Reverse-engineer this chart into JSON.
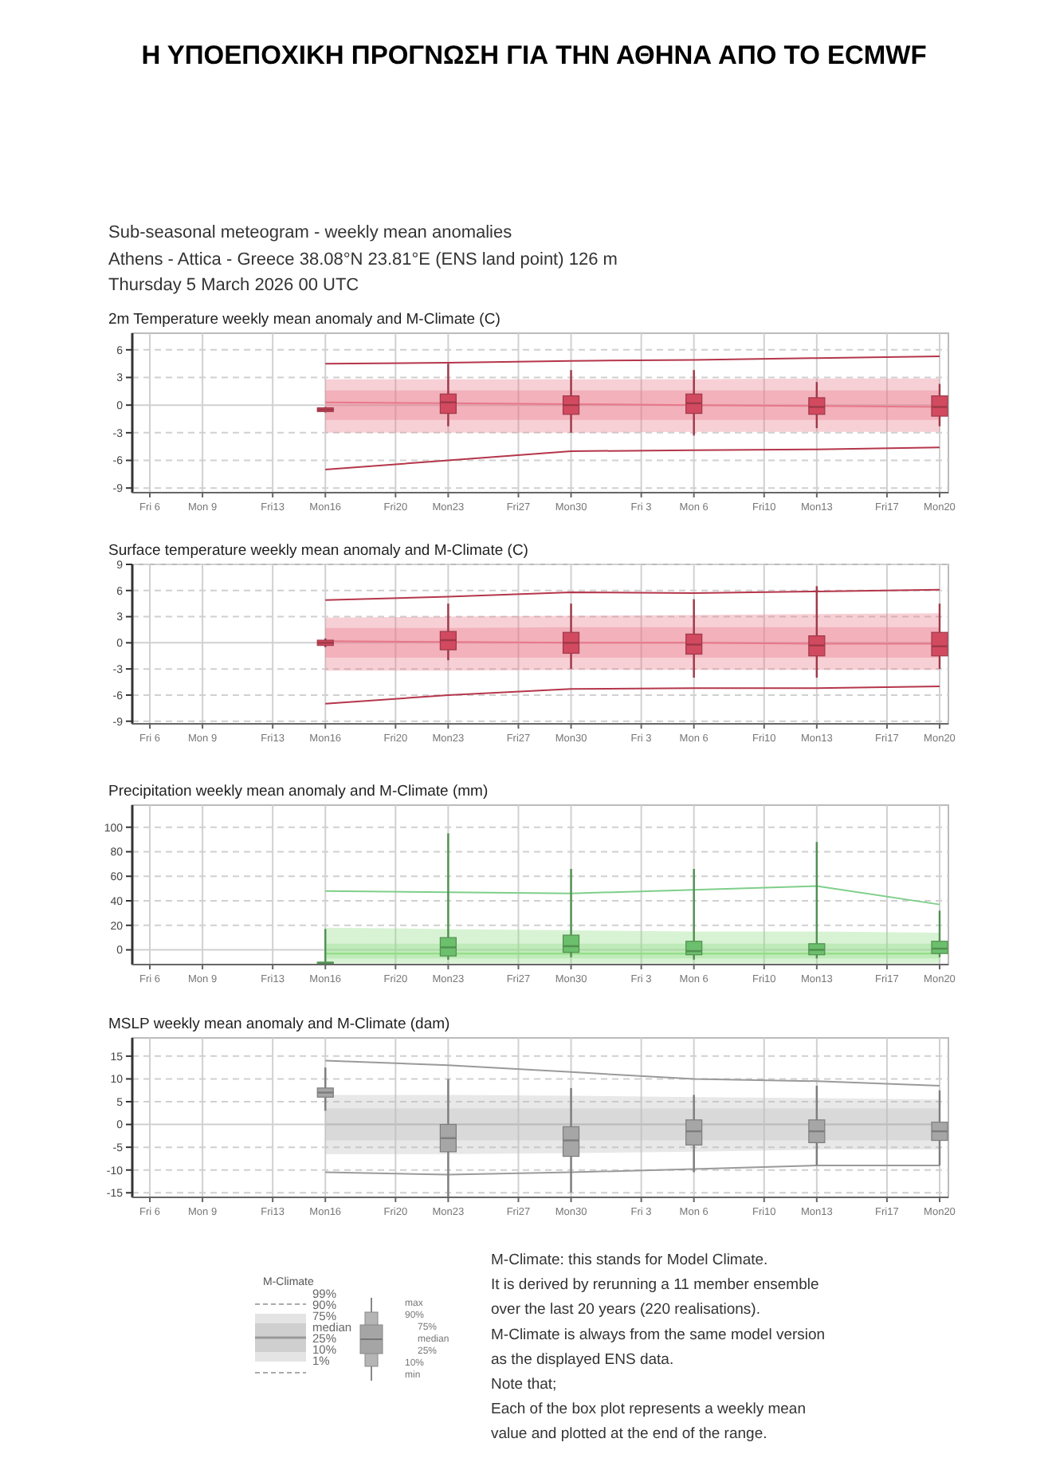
{
  "chart_data": [
    {
      "type": "other",
      "title": "Η ΥΠΟΕΠΟΧΙΚΗ ΠΡΟΓΝΩΣΗ ΓΙΑ ΤΗΝ ΑΘΗΝΑ ΑΠΟ  ΤΟ ECMWF",
      "subtitle": "Sub-seasonal meteogram - weekly mean anomalies",
      "annotations": [
        "Athens - Attica - Greece 38.08°N 23.81°E (ENS land point) 126 m",
        "Thursday  5 March 2026 00 UTC"
      ]
    },
    {
      "type": "box",
      "title": "2m Temperature weekly mean anomaly and M-Climate (C)",
      "xlim": [
        "2026-03-05T00:00",
        "2026-04-20T12:00"
      ],
      "xticks": [
        {
          "value": "2026-03-06",
          "label": "Fri 6"
        },
        {
          "value": "2026-03-09",
          "label": "Mon 9"
        },
        {
          "value": "2026-03-13",
          "label": "Fri13"
        },
        {
          "value": "2026-03-16",
          "label": "Mon16"
        },
        {
          "value": "2026-03-20",
          "label": "Fri20"
        },
        {
          "value": "2026-03-23",
          "label": "Mon23"
        },
        {
          "value": "2026-03-27",
          "label": "Fri27"
        },
        {
          "value": "2026-03-30",
          "label": "Mon30"
        },
        {
          "value": "2026-04-03",
          "label": "Fri 3"
        },
        {
          "value": "2026-04-06",
          "label": "Mon 6"
        },
        {
          "value": "2026-04-10",
          "label": "Fri10"
        },
        {
          "value": "2026-04-13",
          "label": "Mon13"
        },
        {
          "value": "2026-04-17",
          "label": "Fri17"
        },
        {
          "value": "2026-04-20",
          "label": "Mon20"
        }
      ],
      "ylim": [
        -9.5,
        7.8
      ],
      "yticks": [
        -9,
        -6,
        -3,
        0,
        3,
        6
      ],
      "grid": true,
      "series": [
        {
          "type": "line",
          "x": [
            "2026-03-16",
            "2026-03-23",
            "2026-03-30",
            "2026-04-06",
            "2026-04-13",
            "2026-04-20"
          ],
          "values": [
            4.5,
            4.6,
            4.8,
            4.9,
            5.1,
            5.3
          ],
          "color": "#b5364b"
        },
        {
          "type": "line",
          "x": [
            "2026-03-16",
            "2026-03-23",
            "2026-03-30",
            "2026-04-06",
            "2026-04-13",
            "2026-04-20"
          ],
          "values": [
            -7,
            -6,
            -5,
            -4.9,
            -4.8,
            -4.6
          ],
          "color": "#b5364b"
        },
        {
          "type": "line",
          "x": [
            "2026-03-16",
            "2026-03-23",
            "2026-03-30",
            "2026-04-06",
            "2026-04-13",
            "2026-04-20"
          ],
          "values": [
            0.3,
            0.2,
            0.1,
            0,
            -0.1,
            -0.2
          ],
          "lower": [
            -3,
            -3,
            -3,
            -2.9,
            -2.9,
            -2.9
          ],
          "upper": [
            2.8,
            2.8,
            2.8,
            2.8,
            2.9,
            2.9
          ],
          "color": "#e8788a"
        },
        {
          "type": "line",
          "x": [
            "2026-03-16",
            "2026-03-23",
            "2026-03-30",
            "2026-04-06",
            "2026-04-13",
            "2026-04-20"
          ],
          "values": [
            null,
            null,
            null,
            null,
            null,
            null
          ],
          "lower": [
            -1.6,
            -1.6,
            -1.6,
            -1.6,
            -1.6,
            -1.6
          ],
          "upper": [
            1.6,
            1.6,
            1.6,
            1.6,
            1.6,
            1.6
          ],
          "color": "#e8788a"
        },
        {
          "type": "box",
          "x": [
            "2026-03-16",
            "2026-03-23",
            "2026-03-30",
            "2026-04-06",
            "2026-04-13",
            "2026-04-20"
          ],
          "color": "#d24a60",
          "boxes": [
            {
              "low": -0.8,
              "q1": -0.7,
              "median": -0.5,
              "q3": -0.3,
              "high": -0.2
            },
            {
              "low": -2.3,
              "q1": -0.9,
              "median": 0.3,
              "q3": 1.2,
              "high": 4.5
            },
            {
              "low": -3,
              "q1": -1,
              "median": 0,
              "q3": 1,
              "high": 3.8
            },
            {
              "low": -3.3,
              "q1": -0.9,
              "median": 0.2,
              "q3": 1.2,
              "high": 3.8
            },
            {
              "low": -2.5,
              "q1": -1,
              "median": -0.2,
              "q3": 0.8,
              "high": 2.5
            },
            {
              "low": -2.3,
              "q1": -1.2,
              "median": -0.2,
              "q3": 1,
              "high": 2.3
            }
          ]
        }
      ]
    },
    {
      "type": "box",
      "title": "Surface temperature weekly mean anomaly and M-Climate (C)",
      "xlim": [
        "2026-03-05T00:00",
        "2026-04-20T12:00"
      ],
      "xticks": [
        {
          "value": "2026-03-06",
          "label": "Fri 6"
        },
        {
          "value": "2026-03-09",
          "label": "Mon 9"
        },
        {
          "value": "2026-03-13",
          "label": "Fri13"
        },
        {
          "value": "2026-03-16",
          "label": "Mon16"
        },
        {
          "value": "2026-03-20",
          "label": "Fri20"
        },
        {
          "value": "2026-03-23",
          "label": "Mon23"
        },
        {
          "value": "2026-03-27",
          "label": "Fri27"
        },
        {
          "value": "2026-03-30",
          "label": "Mon30"
        },
        {
          "value": "2026-04-03",
          "label": "Fri 3"
        },
        {
          "value": "2026-04-06",
          "label": "Mon 6"
        },
        {
          "value": "2026-04-10",
          "label": "Fri10"
        },
        {
          "value": "2026-04-13",
          "label": "Mon13"
        },
        {
          "value": "2026-04-17",
          "label": "Fri17"
        },
        {
          "value": "2026-04-20",
          "label": "Mon20"
        }
      ],
      "ylim": [
        -9.3,
        9
      ],
      "yticks": [
        -9,
        -6,
        -3,
        0,
        3,
        6,
        9
      ],
      "grid": true,
      "series": [
        {
          "type": "line",
          "x": [
            "2026-03-16",
            "2026-03-23",
            "2026-03-30",
            "2026-04-06",
            "2026-04-13",
            "2026-04-20"
          ],
          "values": [
            4.9,
            5.3,
            5.8,
            5.7,
            5.9,
            6.1
          ],
          "color": "#b5364b"
        },
        {
          "type": "line",
          "x": [
            "2026-03-16",
            "2026-03-23",
            "2026-03-30",
            "2026-04-06",
            "2026-04-13",
            "2026-04-20"
          ],
          "values": [
            -7,
            -6,
            -5.3,
            -5.2,
            -5.2,
            -5
          ],
          "color": "#b5364b"
        },
        {
          "type": "line",
          "x": [
            "2026-03-16",
            "2026-03-23",
            "2026-03-30",
            "2026-04-06",
            "2026-04-13",
            "2026-04-20"
          ],
          "values": [
            0.2,
            0.1,
            0,
            0,
            -0.1,
            -0.1
          ],
          "lower": [
            -3.2,
            -3.2,
            -3.1,
            -3.1,
            -3.1,
            -3.1
          ],
          "upper": [
            2.9,
            3,
            3.1,
            3.2,
            3.3,
            3.4
          ],
          "color": "#e8788a"
        },
        {
          "type": "line",
          "x": [
            "2026-03-16",
            "2026-03-23",
            "2026-03-30",
            "2026-04-06",
            "2026-04-13",
            "2026-04-20"
          ],
          "values": [
            null,
            null,
            null,
            null,
            null,
            null
          ],
          "lower": [
            -1.7,
            -1.7,
            -1.7,
            -1.7,
            -1.7,
            -1.7
          ],
          "upper": [
            1.7,
            1.7,
            1.8,
            1.8,
            1.8,
            1.8
          ],
          "color": "#e8788a"
        },
        {
          "type": "box",
          "x": [
            "2026-03-16",
            "2026-03-23",
            "2026-03-30",
            "2026-04-06",
            "2026-04-13",
            "2026-04-20"
          ],
          "color": "#d24a60",
          "boxes": [
            {
              "low": -0.5,
              "q1": -0.3,
              "median": 0,
              "q3": 0.3,
              "high": 0.5
            },
            {
              "low": -2,
              "q1": -0.8,
              "median": 0.3,
              "q3": 1.3,
              "high": 4.5
            },
            {
              "low": -3,
              "q1": -1.2,
              "median": 0,
              "q3": 1.2,
              "high": 4.5
            },
            {
              "low": -4,
              "q1": -1.3,
              "median": -0.2,
              "q3": 1,
              "high": 5
            },
            {
              "low": -4,
              "q1": -1.5,
              "median": -0.3,
              "q3": 0.8,
              "high": 6.5
            },
            {
              "low": -3,
              "q1": -1.5,
              "median": -0.4,
              "q3": 1.2,
              "high": 4.5
            }
          ]
        }
      ]
    },
    {
      "type": "box",
      "title": "Precipitation weekly mean anomaly and M-Climate (mm)",
      "xlim": [
        "2026-03-05T00:00",
        "2026-04-20T12:00"
      ],
      "xticks": [
        {
          "value": "2026-03-06",
          "label": "Fri 6"
        },
        {
          "value": "2026-03-09",
          "label": "Mon 9"
        },
        {
          "value": "2026-03-13",
          "label": "Fri13"
        },
        {
          "value": "2026-03-16",
          "label": "Mon16"
        },
        {
          "value": "2026-03-20",
          "label": "Fri20"
        },
        {
          "value": "2026-03-23",
          "label": "Mon23"
        },
        {
          "value": "2026-03-27",
          "label": "Fri27"
        },
        {
          "value": "2026-03-30",
          "label": "Mon30"
        },
        {
          "value": "2026-04-03",
          "label": "Fri 3"
        },
        {
          "value": "2026-04-06",
          "label": "Mon 6"
        },
        {
          "value": "2026-04-10",
          "label": "Fri10"
        },
        {
          "value": "2026-04-13",
          "label": "Mon13"
        },
        {
          "value": "2026-04-17",
          "label": "Fri17"
        },
        {
          "value": "2026-04-20",
          "label": "Mon20"
        }
      ],
      "ylim": [
        -12,
        118
      ],
      "yticks": [
        0,
        20,
        40,
        60,
        80,
        100
      ],
      "grid": true,
      "series": [
        {
          "type": "line",
          "x": [
            "2026-03-16",
            "2026-03-23",
            "2026-03-30",
            "2026-04-06",
            "2026-04-13",
            "2026-04-20"
          ],
          "values": [
            48,
            47,
            46,
            49,
            52,
            37
          ],
          "color": "#7fcf8a"
        },
        {
          "type": "line",
          "x": [
            "2026-03-16",
            "2026-03-23",
            "2026-03-30",
            "2026-04-06",
            "2026-04-13",
            "2026-04-20"
          ],
          "values": [
            -3,
            -3,
            -3,
            -3,
            -3,
            -3
          ],
          "lower": [
            -11,
            -11,
            -11,
            -11,
            -11,
            -11
          ],
          "upper": [
            18,
            17,
            16,
            15,
            15,
            14
          ],
          "color": "#8fdc84"
        },
        {
          "type": "line",
          "x": [
            "2026-03-16",
            "2026-03-23",
            "2026-03-30",
            "2026-04-06",
            "2026-04-13",
            "2026-04-20"
          ],
          "values": [
            null,
            null,
            null,
            null,
            null,
            null
          ],
          "lower": [
            -7,
            -7,
            -7,
            -7,
            -7,
            -7
          ],
          "upper": [
            5,
            5,
            5,
            5,
            5,
            5
          ],
          "color": "#8fdc84"
        },
        {
          "type": "box",
          "x": [
            "2026-03-16",
            "2026-03-23",
            "2026-03-30",
            "2026-04-06",
            "2026-04-13",
            "2026-04-20"
          ],
          "color": "#6cbf6c",
          "boxes": [
            {
              "low": -12,
              "q1": -11.5,
              "median": -11,
              "q3": -10,
              "high": 17
            },
            {
              "low": -8,
              "q1": -5,
              "median": 2,
              "q3": 10,
              "high": 95
            },
            {
              "low": -6,
              "q1": -2,
              "median": 3,
              "q3": 12,
              "high": 66
            },
            {
              "low": -8,
              "q1": -4,
              "median": -1,
              "q3": 7,
              "high": 66
            },
            {
              "low": -7,
              "q1": -4,
              "median": 0,
              "q3": 5,
              "high": 88
            },
            {
              "low": -6,
              "q1": -3,
              "median": 1,
              "q3": 7,
              "high": 32
            }
          ]
        }
      ]
    },
    {
      "type": "box",
      "title": "MSLP weekly mean anomaly and M-Climate (dam)",
      "xlim": [
        "2026-03-05T00:00",
        "2026-04-20T12:00"
      ],
      "xticks": [
        {
          "value": "2026-03-06",
          "label": "Fri 6"
        },
        {
          "value": "2026-03-09",
          "label": "Mon 9"
        },
        {
          "value": "2026-03-13",
          "label": "Fri13"
        },
        {
          "value": "2026-03-16",
          "label": "Mon16"
        },
        {
          "value": "2026-03-20",
          "label": "Fri20"
        },
        {
          "value": "2026-03-23",
          "label": "Mon23"
        },
        {
          "value": "2026-03-27",
          "label": "Fri27"
        },
        {
          "value": "2026-03-30",
          "label": "Mon30"
        },
        {
          "value": "2026-04-03",
          "label": "Fri 3"
        },
        {
          "value": "2026-04-06",
          "label": "Mon 6"
        },
        {
          "value": "2026-04-10",
          "label": "Fri10"
        },
        {
          "value": "2026-04-13",
          "label": "Mon13"
        },
        {
          "value": "2026-04-17",
          "label": "Fri17"
        },
        {
          "value": "2026-04-20",
          "label": "Mon20"
        }
      ],
      "ylim": [
        -16,
        19
      ],
      "yticks": [
        -15,
        -10,
        -5,
        0,
        5,
        10,
        15
      ],
      "grid": true,
      "series": [
        {
          "type": "line",
          "x": [
            "2026-03-16",
            "2026-03-23",
            "2026-03-30",
            "2026-04-06",
            "2026-04-13",
            "2026-04-20"
          ],
          "values": [
            14,
            13,
            11.5,
            10,
            9.5,
            8.5
          ],
          "color": "#9a9a9a"
        },
        {
          "type": "line",
          "x": [
            "2026-03-16",
            "2026-03-23",
            "2026-03-30",
            "2026-04-06",
            "2026-04-13",
            "2026-04-20"
          ],
          "values": [
            -10.5,
            -11,
            -10.5,
            -9.8,
            -9,
            -9
          ],
          "color": "#9a9a9a"
        },
        {
          "type": "line",
          "x": [
            "2026-03-16",
            "2026-03-23",
            "2026-03-30",
            "2026-04-06",
            "2026-04-13",
            "2026-04-20"
          ],
          "values": [
            0,
            0,
            0,
            0,
            0,
            0
          ],
          "lower": [
            -6.5,
            -6.5,
            -6.3,
            -6,
            -5.5,
            -5.5
          ],
          "upper": [
            6.5,
            6.5,
            6.3,
            6,
            5.8,
            5.5
          ],
          "color": "#bdbdbd"
        },
        {
          "type": "line",
          "x": [
            "2026-03-16",
            "2026-03-23",
            "2026-03-30",
            "2026-04-06",
            "2026-04-13",
            "2026-04-20"
          ],
          "values": [
            null,
            null,
            null,
            null,
            null,
            null
          ],
          "lower": [
            -3.5,
            -3.5,
            -3.5,
            -3.5,
            -3.5,
            -3.5
          ],
          "upper": [
            3.5,
            3.5,
            3.5,
            3.5,
            3.5,
            3.5
          ],
          "color": "#bdbdbd"
        },
        {
          "type": "box",
          "x": [
            "2026-03-16",
            "2026-03-23",
            "2026-03-30",
            "2026-04-06",
            "2026-04-13",
            "2026-04-20"
          ],
          "color": "#a6a6a6",
          "boxes": [
            {
              "low": 3,
              "q1": 6,
              "median": 7,
              "q3": 8,
              "high": 12.5
            },
            {
              "low": -16,
              "q1": -6,
              "median": -3,
              "q3": 0,
              "high": 10
            },
            {
              "low": -15,
              "q1": -7,
              "median": -3.5,
              "q3": -0.5,
              "high": 8
            },
            {
              "low": -10.5,
              "q1": -4.5,
              "median": -1.5,
              "q3": 1,
              "high": 6.5
            },
            {
              "low": -9,
              "q1": -4,
              "median": -1.5,
              "q3": 1,
              "high": 8.5
            },
            {
              "low": -9,
              "q1": -3.5,
              "median": -1.5,
              "q3": 0.5,
              "high": 7.5
            }
          ]
        }
      ]
    },
    {
      "type": "other",
      "annotations": [
        "M-Climate",
        "99%",
        "90%",
        "75%",
        "median",
        "25%",
        "10%",
        "1%",
        "max",
        "90%",
        "75%",
        "median",
        "25%",
        "10%",
        "min",
        "M-Climate: this stands for Model Climate.",
        "It is derived by rerunning a 11 member ensemble",
        "over the last 20 years  (220 realisations).",
        "M-Climate is always from the same model version",
        "as the displayed ENS data.",
        "Note that;",
        "Each of the box plot represents a weekly mean",
        "value and plotted at the end of the range."
      ]
    }
  ]
}
